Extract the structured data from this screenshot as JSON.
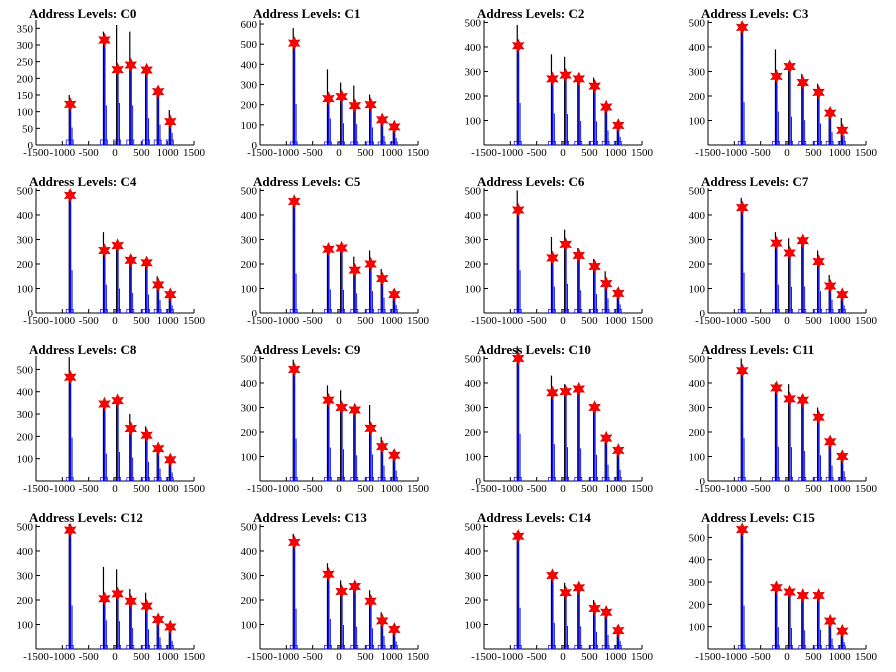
{
  "figure": {
    "colors": {
      "histogram": "#000000",
      "fit": "#0000ff",
      "peak_marker": "#ff0000"
    },
    "x_ticks": [
      -1500,
      -1000,
      -500,
      0,
      500,
      1000,
      1500
    ],
    "x_tick_labels": [
      "-1500",
      "-1000",
      "-500",
      "0",
      "500",
      "1000",
      "1500"
    ],
    "xlim": [
      -1500,
      1500
    ]
  },
  "chart_data": [
    {
      "type": "bar",
      "title": "Address Levels: C0",
      "ylim": [
        0,
        375
      ],
      "yticks": [
        0,
        50,
        100,
        150,
        200,
        250,
        300,
        350
      ],
      "peaks": {
        "x": [
          -850,
          -200,
          50,
          300,
          600,
          820,
          1050
        ],
        "y": [
          122,
          315,
          226,
          240,
          225,
          160,
          70
        ]
      },
      "histogram": {
        "x": [
          -850,
          -200,
          50,
          300,
          600,
          820,
          1050
        ],
        "y": [
          150,
          340,
          360,
          340,
          230,
          175,
          105
        ]
      }
    },
    {
      "type": "bar",
      "title": "Address Levels: C1",
      "ylim": [
        0,
        620
      ],
      "yticks": [
        0,
        100,
        200,
        300,
        400,
        500,
        600
      ],
      "peaks": {
        "x": [
          -850,
          -200,
          50,
          300,
          600,
          820,
          1050
        ],
        "y": [
          505,
          230,
          240,
          195,
          200,
          125,
          90
        ]
      },
      "histogram": {
        "x": [
          -850,
          -200,
          50,
          300,
          600,
          820,
          1050
        ],
        "y": [
          580,
          375,
          310,
          295,
          250,
          130,
          100
        ]
      }
    },
    {
      "type": "bar",
      "title": "Address Levels: C2",
      "ylim": [
        0,
        510
      ],
      "yticks": [
        100,
        200,
        300,
        400,
        500
      ],
      "peaks": {
        "x": [
          -850,
          -200,
          50,
          300,
          600,
          820,
          1050
        ],
        "y": [
          405,
          270,
          285,
          270,
          240,
          155,
          80
        ]
      },
      "histogram": {
        "x": [
          -850,
          -200,
          50,
          300,
          600,
          820,
          1050
        ],
        "y": [
          490,
          370,
          360,
          280,
          275,
          170,
          95
        ]
      }
    },
    {
      "type": "bar",
      "title": "Address Levels: C3",
      "ylim": [
        0,
        510
      ],
      "yticks": [
        100,
        200,
        300,
        400,
        500
      ],
      "peaks": {
        "x": [
          -850,
          -200,
          50,
          300,
          600,
          820,
          1050
        ],
        "y": [
          480,
          280,
          320,
          255,
          215,
          130,
          60
        ]
      },
      "histogram": {
        "x": [
          -850,
          -200,
          50,
          300,
          600,
          820,
          1050
        ],
        "y": [
          500,
          390,
          330,
          290,
          250,
          150,
          110
        ]
      }
    },
    {
      "type": "bar",
      "title": "Address Levels: C4",
      "ylim": [
        0,
        510
      ],
      "yticks": [
        0,
        100,
        200,
        300,
        400,
        500
      ],
      "peaks": {
        "x": [
          -850,
          -200,
          50,
          300,
          600,
          820,
          1050
        ],
        "y": [
          480,
          255,
          275,
          215,
          205,
          115,
          75
        ]
      },
      "histogram": {
        "x": [
          -850,
          -200,
          50,
          300,
          600,
          820,
          1050
        ],
        "y": [
          500,
          330,
          285,
          235,
          215,
          150,
          90
        ]
      }
    },
    {
      "type": "bar",
      "title": "Address Levels: C5",
      "ylim": [
        0,
        510
      ],
      "yticks": [
        0,
        100,
        200,
        300,
        400,
        500
      ],
      "peaks": {
        "x": [
          -850,
          -200,
          50,
          300,
          600,
          820,
          1050
        ],
        "y": [
          455,
          260,
          265,
          175,
          200,
          140,
          75
        ]
      },
      "histogram": {
        "x": [
          -850,
          -200,
          50,
          300,
          600,
          820,
          1050
        ],
        "y": [
          460,
          275,
          270,
          230,
          255,
          180,
          95
        ]
      }
    },
    {
      "type": "bar",
      "title": "Address Levels: C6",
      "ylim": [
        0,
        510
      ],
      "yticks": [
        100,
        200,
        300,
        400,
        500
      ],
      "peaks": {
        "x": [
          -850,
          -200,
          50,
          300,
          600,
          820,
          1050
        ],
        "y": [
          420,
          225,
          280,
          235,
          190,
          120,
          80
        ]
      },
      "histogram": {
        "x": [
          -850,
          -200,
          50,
          300,
          600,
          820,
          1050
        ],
        "y": [
          500,
          310,
          340,
          265,
          220,
          170,
          100
        ]
      }
    },
    {
      "type": "bar",
      "title": "Address Levels: C7",
      "ylim": [
        0,
        510
      ],
      "yticks": [
        0,
        100,
        200,
        300,
        400,
        500
      ],
      "peaks": {
        "x": [
          -850,
          -200,
          50,
          300,
          600,
          820,
          1050
        ],
        "y": [
          430,
          285,
          245,
          295,
          210,
          110,
          75
        ]
      },
      "histogram": {
        "x": [
          -850,
          -200,
          50,
          300,
          600,
          820,
          1050
        ],
        "y": [
          470,
          330,
          305,
          310,
          255,
          155,
          90
        ]
      }
    },
    {
      "type": "bar",
      "title": "Address Levels: C8",
      "ylim": [
        0,
        560
      ],
      "yticks": [
        100,
        200,
        300,
        400,
        500
      ],
      "peaks": {
        "x": [
          -850,
          -200,
          50,
          300,
          600,
          820,
          1050
        ],
        "y": [
          465,
          345,
          360,
          235,
          205,
          145,
          95
        ]
      },
      "histogram": {
        "x": [
          -850,
          -200,
          50,
          300,
          600,
          820,
          1050
        ],
        "y": [
          555,
          350,
          370,
          300,
          245,
          160,
          110
        ]
      }
    },
    {
      "type": "bar",
      "title": "Address Levels: C9",
      "ylim": [
        0,
        510
      ],
      "yticks": [
        100,
        200,
        300,
        400,
        500
      ],
      "peaks": {
        "x": [
          -850,
          -200,
          50,
          300,
          600,
          820,
          1050
        ],
        "y": [
          455,
          330,
          300,
          290,
          215,
          140,
          105
        ]
      },
      "histogram": {
        "x": [
          -850,
          -200,
          50,
          300,
          600,
          820,
          1050
        ],
        "y": [
          495,
          390,
          370,
          300,
          310,
          180,
          125
        ]
      }
    },
    {
      "type": "bar",
      "title": "Address Levels: C10",
      "ylim": [
        0,
        510
      ],
      "yticks": [
        0,
        100,
        200,
        300,
        400,
        500
      ],
      "peaks": {
        "x": [
          -850,
          -200,
          50,
          300,
          600,
          820,
          1050
        ],
        "y": [
          500,
          360,
          365,
          375,
          300,
          175,
          125
        ]
      },
      "histogram": {
        "x": [
          -850,
          -200,
          50,
          300,
          600,
          820,
          1050
        ],
        "y": [
          550,
          430,
          395,
          380,
          305,
          190,
          130
        ]
      }
    },
    {
      "type": "bar",
      "title": "Address Levels: C11",
      "ylim": [
        0,
        510
      ],
      "yticks": [
        0,
        100,
        200,
        300,
        400,
        500
      ],
      "peaks": {
        "x": [
          -850,
          -200,
          50,
          300,
          600,
          820,
          1050
        ],
        "y": [
          450,
          380,
          335,
          330,
          260,
          160,
          100
        ]
      },
      "histogram": {
        "x": [
          -850,
          -200,
          50,
          300,
          600,
          820,
          1050
        ],
        "y": [
          500,
          400,
          395,
          350,
          300,
          180,
          115
        ]
      }
    },
    {
      "type": "bar",
      "title": "Address Levels: C12",
      "ylim": [
        0,
        510
      ],
      "yticks": [
        100,
        200,
        300,
        400,
        500
      ],
      "peaks": {
        "x": [
          -850,
          -200,
          50,
          300,
          600,
          820,
          1050
        ],
        "y": [
          485,
          205,
          225,
          195,
          175,
          120,
          90
        ]
      },
      "histogram": {
        "x": [
          -850,
          -200,
          50,
          300,
          600,
          820,
          1050
        ],
        "y": [
          510,
          335,
          325,
          245,
          230,
          135,
          95
        ]
      }
    },
    {
      "type": "bar",
      "title": "Address Levels: C13",
      "ylim": [
        0,
        510
      ],
      "yticks": [
        100,
        200,
        300,
        400,
        500
      ],
      "peaks": {
        "x": [
          -850,
          -200,
          50,
          300,
          600,
          820,
          1050
        ],
        "y": [
          435,
          305,
          235,
          255,
          195,
          115,
          80
        ]
      },
      "histogram": {
        "x": [
          -850,
          -200,
          50,
          300,
          600,
          820,
          1050
        ],
        "y": [
          470,
          350,
          280,
          260,
          240,
          150,
          90
        ]
      }
    },
    {
      "type": "bar",
      "title": "Address Levels: C14",
      "ylim": [
        0,
        510
      ],
      "yticks": [
        100,
        200,
        300,
        400,
        500
      ],
      "peaks": {
        "x": [
          -850,
          -200,
          50,
          300,
          600,
          820,
          1050
        ],
        "y": [
          460,
          300,
          230,
          250,
          165,
          150,
          75
        ]
      },
      "histogram": {
        "x": [
          -850,
          -200,
          50,
          300,
          600,
          820,
          1050
        ],
        "y": [
          480,
          305,
          270,
          265,
          200,
          165,
          95
        ]
      }
    },
    {
      "type": "bar",
      "title": "Address Levels: C15",
      "ylim": [
        0,
        560
      ],
      "yticks": [
        100,
        200,
        300,
        400,
        500
      ],
      "peaks": {
        "x": [
          -850,
          -200,
          50,
          300,
          600,
          820,
          1050
        ],
        "y": [
          535,
          275,
          255,
          240,
          240,
          125,
          80
        ]
      },
      "histogram": {
        "x": [
          -850,
          -200,
          50,
          300,
          600,
          820,
          1050
        ],
        "y": [
          555,
          280,
          270,
          240,
          245,
          135,
          90
        ]
      }
    }
  ]
}
